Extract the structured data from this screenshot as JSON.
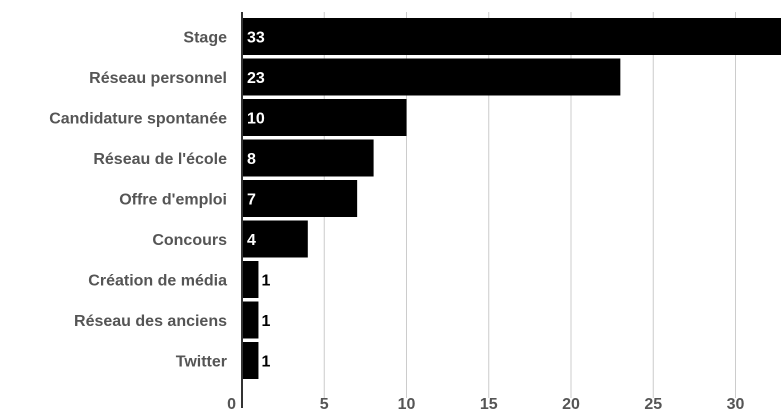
{
  "chart_data": {
    "type": "bar",
    "orientation": "horizontal",
    "categories": [
      "Stage",
      "Réseau personnel",
      "Candidature spontanée",
      "Réseau de l'école",
      "Offre d'emploi",
      "Concours",
      "Création de média",
      "Réseau des anciens",
      "Twitter"
    ],
    "values": [
      33,
      23,
      10,
      8,
      7,
      4,
      1,
      1,
      1
    ],
    "x_ticks": [
      0,
      5,
      10,
      15,
      20,
      25,
      30
    ],
    "xlim": [
      0,
      32
    ],
    "grid": true,
    "title": "",
    "xlabel": "",
    "ylabel": "",
    "colors": {
      "bar": "#000000",
      "grid": "#cccccc",
      "axis": "#333333",
      "label_inside": "#ffffff",
      "label_outside": "#000000"
    }
  }
}
